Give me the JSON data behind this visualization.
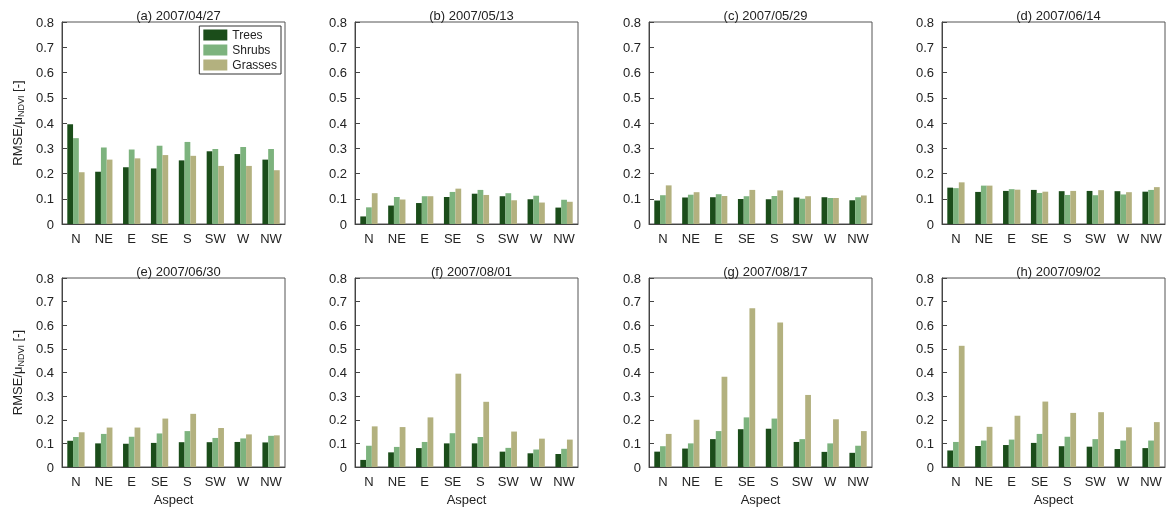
{
  "chart_data": [
    {
      "type": "bar",
      "title": "(a) 2007/04/27",
      "ylabel": "RMSE/μ$_{NDVI}$ [-]",
      "legend": "top right",
      "categories": [
        "N",
        "NE",
        "E",
        "SE",
        "S",
        "SW",
        "W",
        "NW"
      ],
      "ylim": [
        0,
        0.8
      ],
      "yticks": [
        0,
        0.1,
        0.2,
        0.3,
        0.4,
        0.5,
        0.6,
        0.7,
        0.8
      ],
      "series": [
        {
          "name": "Trees",
          "color": "#1b4d1a",
          "values": [
            0.395,
            0.207,
            0.225,
            0.22,
            0.252,
            0.288,
            0.277,
            0.255
          ]
        },
        {
          "name": "Shrubs",
          "color": "#7db37e",
          "values": [
            0.34,
            0.303,
            0.295,
            0.31,
            0.325,
            0.297,
            0.305,
            0.297
          ]
        },
        {
          "name": "Grasses",
          "color": "#b3b17f",
          "values": [
            0.205,
            0.255,
            0.26,
            0.273,
            0.27,
            0.23,
            0.23,
            0.213
          ]
        }
      ]
    },
    {
      "type": "bar",
      "title": "(b) 2007/05/13",
      "categories": [
        "N",
        "NE",
        "E",
        "SE",
        "S",
        "SW",
        "W",
        "NW"
      ],
      "ylim": [
        0,
        0.8
      ],
      "yticks": [
        0,
        0.1,
        0.2,
        0.3,
        0.4,
        0.5,
        0.6,
        0.7,
        0.8
      ],
      "series": [
        {
          "color": "#1b4d1a",
          "values": [
            0.03,
            0.073,
            0.083,
            0.107,
            0.12,
            0.11,
            0.098,
            0.065
          ]
        },
        {
          "color": "#7db37e",
          "values": [
            0.066,
            0.107,
            0.11,
            0.127,
            0.135,
            0.122,
            0.112,
            0.096
          ]
        },
        {
          "color": "#b3b17f",
          "values": [
            0.122,
            0.097,
            0.11,
            0.14,
            0.115,
            0.094,
            0.085,
            0.088
          ]
        }
      ]
    },
    {
      "type": "bar",
      "title": "(c) 2007/05/29",
      "categories": [
        "N",
        "NE",
        "E",
        "SE",
        "S",
        "SW",
        "W",
        "NW"
      ],
      "ylim": [
        0,
        0.8
      ],
      "yticks": [
        0,
        0.1,
        0.2,
        0.3,
        0.4,
        0.5,
        0.6,
        0.7,
        0.8
      ],
      "series": [
        {
          "color": "#1b4d1a",
          "values": [
            0.093,
            0.105,
            0.106,
            0.099,
            0.098,
            0.105,
            0.106,
            0.094
          ]
        },
        {
          "color": "#7db37e",
          "values": [
            0.114,
            0.116,
            0.118,
            0.11,
            0.111,
            0.1,
            0.103,
            0.106
          ]
        },
        {
          "color": "#b3b17f",
          "values": [
            0.153,
            0.126,
            0.111,
            0.135,
            0.133,
            0.11,
            0.103,
            0.113
          ]
        }
      ]
    },
    {
      "type": "bar",
      "title": "(d) 2007/06/14",
      "categories": [
        "N",
        "NE",
        "E",
        "SE",
        "S",
        "SW",
        "W",
        "NW"
      ],
      "ylim": [
        0,
        0.8
      ],
      "yticks": [
        0,
        0.1,
        0.2,
        0.3,
        0.4,
        0.5,
        0.6,
        0.7,
        0.8
      ],
      "series": [
        {
          "color": "#1b4d1a",
          "values": [
            0.144,
            0.127,
            0.131,
            0.135,
            0.13,
            0.131,
            0.13,
            0.128
          ]
        },
        {
          "color": "#7db37e",
          "values": [
            0.142,
            0.152,
            0.138,
            0.123,
            0.115,
            0.114,
            0.117,
            0.135
          ]
        },
        {
          "color": "#b3b17f",
          "values": [
            0.165,
            0.152,
            0.136,
            0.128,
            0.131,
            0.134,
            0.126,
            0.146
          ]
        }
      ]
    },
    {
      "type": "bar",
      "title": "(e) 2007/06/30",
      "ylabel": "RMSE/μ$_{NDVI}$ [-]",
      "xlabel": "Aspect",
      "categories": [
        "N",
        "NE",
        "E",
        "SE",
        "S",
        "SW",
        "W",
        "NW"
      ],
      "ylim": [
        0,
        0.8
      ],
      "yticks": [
        0,
        0.1,
        0.2,
        0.3,
        0.4,
        0.5,
        0.6,
        0.7,
        0.8
      ],
      "series": [
        {
          "color": "#1b4d1a",
          "values": [
            0.111,
            0.1,
            0.098,
            0.102,
            0.105,
            0.105,
            0.106,
            0.104
          ]
        },
        {
          "color": "#7db37e",
          "values": [
            0.127,
            0.14,
            0.128,
            0.142,
            0.152,
            0.123,
            0.121,
            0.132
          ]
        },
        {
          "color": "#b3b17f",
          "values": [
            0.147,
            0.167,
            0.167,
            0.205,
            0.225,
            0.165,
            0.138,
            0.134
          ]
        }
      ]
    },
    {
      "type": "bar",
      "title": "(f) 2007/08/01",
      "xlabel": "Aspect",
      "categories": [
        "N",
        "NE",
        "E",
        "SE",
        "S",
        "SW",
        "W",
        "NW"
      ],
      "ylim": [
        0,
        0.8
      ],
      "yticks": [
        0,
        0.1,
        0.2,
        0.3,
        0.4,
        0.5,
        0.6,
        0.7,
        0.8
      ],
      "series": [
        {
          "color": "#1b4d1a",
          "values": [
            0.03,
            0.062,
            0.08,
            0.1,
            0.1,
            0.065,
            0.058,
            0.055
          ]
        },
        {
          "color": "#7db37e",
          "values": [
            0.09,
            0.085,
            0.106,
            0.143,
            0.127,
            0.081,
            0.074,
            0.077
          ]
        },
        {
          "color": "#b3b17f",
          "values": [
            0.172,
            0.169,
            0.21,
            0.395,
            0.276,
            0.15,
            0.12,
            0.116
          ]
        }
      ]
    },
    {
      "type": "bar",
      "title": "(g) 2007/08/17",
      "xlabel": "Aspect",
      "categories": [
        "N",
        "NE",
        "E",
        "SE",
        "S",
        "SW",
        "W",
        "NW"
      ],
      "ylim": [
        0,
        0.8
      ],
      "yticks": [
        0,
        0.1,
        0.2,
        0.3,
        0.4,
        0.5,
        0.6,
        0.7,
        0.8
      ],
      "series": [
        {
          "color": "#1b4d1a",
          "values": [
            0.065,
            0.078,
            0.118,
            0.16,
            0.162,
            0.106,
            0.064,
            0.06
          ]
        },
        {
          "color": "#7db37e",
          "values": [
            0.088,
            0.1,
            0.152,
            0.21,
            0.205,
            0.118,
            0.1,
            0.09
          ]
        },
        {
          "color": "#b3b17f",
          "values": [
            0.14,
            0.2,
            0.382,
            0.672,
            0.612,
            0.305,
            0.202,
            0.152
          ]
        }
      ]
    },
    {
      "type": "bar",
      "title": "(h) 2007/09/02",
      "xlabel": "Aspect",
      "categories": [
        "N",
        "NE",
        "E",
        "SE",
        "S",
        "SW",
        "W",
        "NW"
      ],
      "ylim": [
        0,
        0.8
      ],
      "yticks": [
        0,
        0.1,
        0.2,
        0.3,
        0.4,
        0.5,
        0.6,
        0.7,
        0.8
      ],
      "series": [
        {
          "color": "#1b4d1a",
          "values": [
            0.07,
            0.089,
            0.093,
            0.102,
            0.088,
            0.086,
            0.076,
            0.08
          ]
        },
        {
          "color": "#7db37e",
          "values": [
            0.106,
            0.112,
            0.116,
            0.14,
            0.128,
            0.118,
            0.112,
            0.112
          ]
        },
        {
          "color": "#b3b17f",
          "values": [
            0.513,
            0.17,
            0.217,
            0.277,
            0.229,
            0.232,
            0.168,
            0.19
          ]
        }
      ]
    }
  ]
}
